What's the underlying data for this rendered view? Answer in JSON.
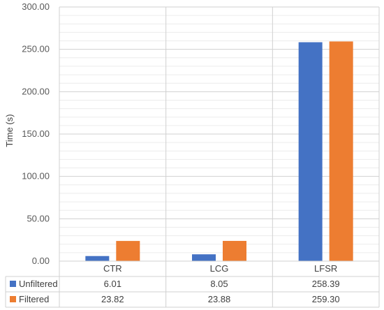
{
  "chart_data": {
    "type": "bar",
    "categories": [
      "CTR",
      "LCG",
      "LFSR"
    ],
    "series": [
      {
        "name": "Unfiltered",
        "values": [
          6.01,
          8.05,
          258.39
        ],
        "color": "#4472C4"
      },
      {
        "name": "Filtered",
        "values": [
          23.82,
          23.88,
          259.3
        ],
        "color": "#ED7D31"
      }
    ],
    "value_labels": [
      [
        "6.01",
        "8.05",
        "258.39"
      ],
      [
        "23.82",
        "23.88",
        "259.30"
      ]
    ],
    "ylabel": "Time (s)",
    "ylim": [
      0,
      300
    ],
    "yticks": [
      "0.00",
      "50.00",
      "100.00",
      "150.00",
      "200.00",
      "250.00",
      "300.00"
    ],
    "ytick_values": [
      0,
      50,
      100,
      150,
      200,
      250,
      300
    ],
    "minor_step": 10,
    "grid": true,
    "legend": "data-table"
  }
}
